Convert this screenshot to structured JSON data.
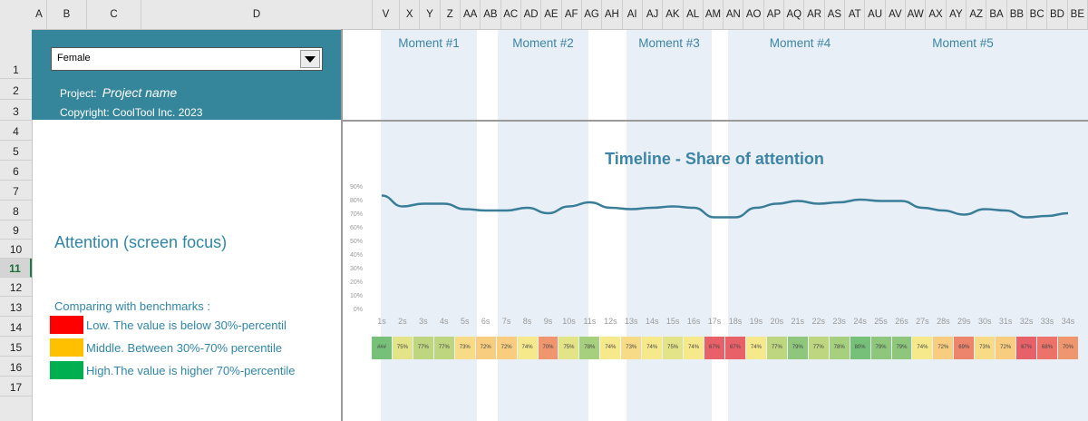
{
  "sheet": {
    "column_headers": [
      "A",
      "B",
      "C",
      "D",
      "V",
      "X",
      "Y",
      "Z",
      "AA",
      "AB",
      "AC",
      "AD",
      "AE",
      "AF",
      "AG",
      "AH",
      "AI",
      "AJ",
      "AK",
      "AL",
      "AM",
      "AN",
      "AO",
      "AP",
      "AQ",
      "AR",
      "AS",
      "AT",
      "AU",
      "AV",
      "AW",
      "AX",
      "AY",
      "AZ",
      "BA",
      "BB",
      "BC",
      "BD",
      "BE"
    ],
    "row_headers": [
      "1",
      "2",
      "3",
      "4",
      "5",
      "6",
      "7",
      "8",
      "9",
      "10",
      "11",
      "12",
      "13",
      "14",
      "15",
      "16",
      "17"
    ],
    "active_row": "11"
  },
  "panel": {
    "selected_segment": "Female",
    "project_label": "Project:",
    "project_name": "Project name",
    "copyright": "Copyright: CoolTool Inc. 2023"
  },
  "moments": [
    "Moment #1",
    "Moment #2",
    "Moment #3",
    "Moment #4",
    "Moment #5"
  ],
  "left": {
    "attention_title": "Attention (screen focus)",
    "benchmark_title": "Comparing with benchmarks :",
    "legend": [
      {
        "label": "Low. The value is below 30%-percentil",
        "color": "#ff0000"
      },
      {
        "label": "Middle. Between 30%-70% percentile",
        "color": "#ffc000"
      },
      {
        "label": "High.The value is higher 70%-percentile",
        "color": "#00b050"
      }
    ]
  },
  "chart_data": {
    "type": "line",
    "title": "Timeline - Share of attention",
    "x": [
      "1s",
      "2s",
      "3s",
      "4s",
      "5s",
      "6s",
      "7s",
      "8s",
      "9s",
      "10s",
      "11s",
      "12s",
      "13s",
      "14s",
      "15s",
      "16s",
      "17s",
      "18s",
      "19s",
      "20s",
      "21s",
      "22s",
      "23s",
      "24s",
      "25s",
      "26s",
      "27s",
      "28s",
      "29s",
      "30s",
      "31s",
      "32s",
      "33s",
      "34s"
    ],
    "series": [
      {
        "values": [
          83,
          75,
          77,
          77,
          73,
          72,
          72,
          74,
          70,
          75,
          78,
          74,
          73,
          74,
          75,
          74,
          67,
          67,
          74,
          77,
          79,
          77,
          78,
          80,
          79,
          79,
          74,
          72,
          69,
          73,
          72,
          67,
          68,
          70
        ]
      }
    ],
    "y_ticks": [
      "0%",
      "10%",
      "20%",
      "30%",
      "40%",
      "50%",
      "60%",
      "70%",
      "80%",
      "90%"
    ],
    "ylim": [
      0,
      90
    ],
    "line_color": "#3a7d98",
    "heatmap_labels": [
      "###",
      "75%",
      "77%",
      "77%",
      "73%",
      "72%",
      "72%",
      "74%",
      "70%",
      "75%",
      "78%",
      "74%",
      "73%",
      "74%",
      "75%",
      "74%",
      "67%",
      "67%",
      "74%",
      "77%",
      "79%",
      "77%",
      "78%",
      "80%",
      "79%",
      "79%",
      "74%",
      "72%",
      "69%",
      "73%",
      "72%",
      "67%",
      "68%",
      "70%"
    ]
  }
}
